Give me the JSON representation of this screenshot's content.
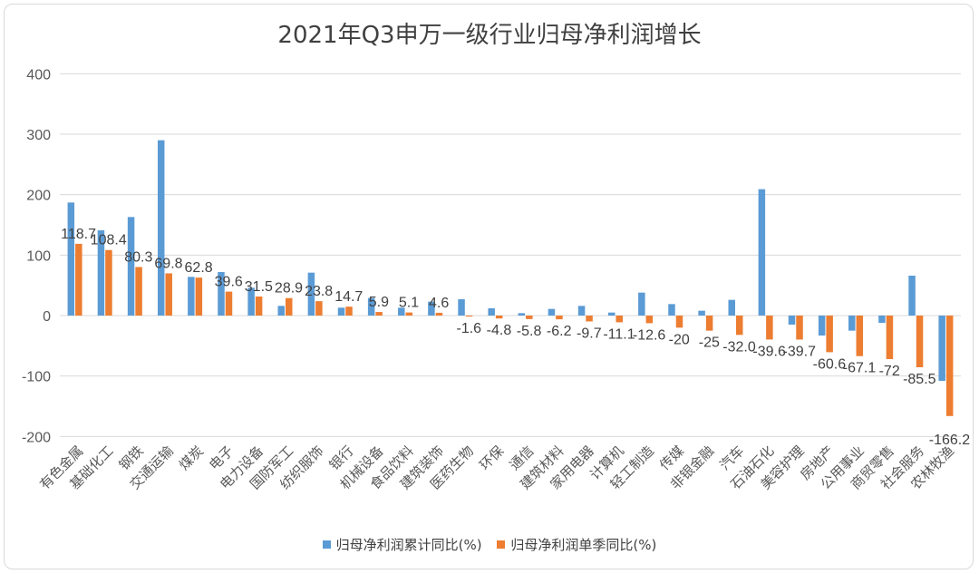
{
  "chart_data": {
    "type": "bar",
    "title": "2021年Q3申万一级行业归母净利润增长",
    "xlabel": "",
    "ylabel": "",
    "ylim": [
      -200,
      400
    ],
    "yticks": [
      -200,
      -100,
      0,
      100,
      200,
      300,
      400
    ],
    "grid": true,
    "legend_position": "bottom",
    "categories": [
      "有色金属",
      "基础化工",
      "钢铁",
      "交通运输",
      "煤炭",
      "电子",
      "电力设备",
      "国防军工",
      "纺织服饰",
      "银行",
      "机械设备",
      "食品饮料",
      "建筑装饰",
      "医药生物",
      "环保",
      "通信",
      "建筑材料",
      "家用电器",
      "计算机",
      "轻工制造",
      "传媒",
      "非银金融",
      "汽车",
      "石油石化",
      "美容护理",
      "房地产",
      "公用事业",
      "商贸零售",
      "社会服务",
      "农林牧渔"
    ],
    "series": [
      {
        "name": "归母净利润累计同比(%)",
        "color": "#5b9bd5",
        "values": [
          187,
          141,
          163,
          290,
          64,
          72,
          46,
          16,
          71,
          13,
          29,
          13,
          23,
          27,
          12,
          4,
          11,
          16,
          5,
          38,
          19,
          8,
          26,
          209,
          -15,
          -33,
          -25,
          -12,
          66,
          -108
        ]
      },
      {
        "name": "归母净利润单季同比(%)",
        "color": "#ed7d31",
        "values": [
          118.7,
          108.4,
          80.3,
          69.8,
          62.8,
          39.6,
          31.5,
          28.9,
          23.8,
          14.7,
          5.9,
          5.1,
          4.6,
          -1.6,
          -4.8,
          -5.8,
          -6.2,
          -9.7,
          -11.1,
          -12.6,
          -20,
          -25,
          -32.0,
          -39.6,
          -39.7,
          -60.6,
          -67.1,
          -72,
          -85.5,
          -166.2
        ],
        "data_labels": [
          "118.7",
          "108.4",
          "80.3",
          "69.8",
          "62.8",
          "39.6",
          "31.5",
          "28.9",
          "23.8",
          "14.7",
          "5.9",
          "5.1",
          "4.6",
          "-1.6",
          "-4.8",
          "-5.8",
          "-6.2",
          "-9.7",
          "-11.1",
          "-12.6",
          "-20",
          "-25",
          "-32.0",
          "-39.6",
          "-39.7",
          "-60.6",
          "-67.1",
          "-72",
          "-85.5",
          "-166.2"
        ]
      }
    ]
  }
}
